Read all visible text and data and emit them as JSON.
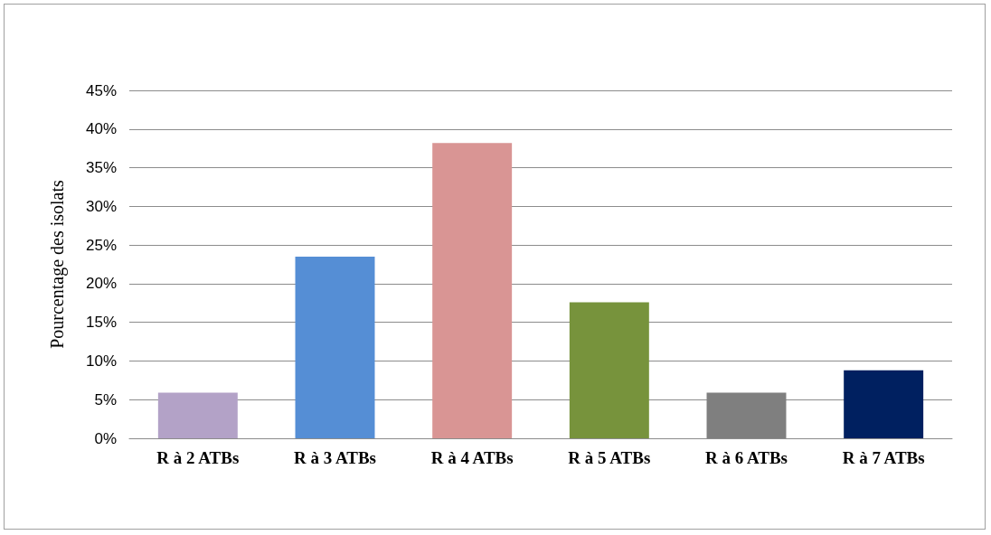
{
  "chart_data": {
    "type": "bar",
    "ylabel": "Pourcentage des isolats",
    "categories": [
      "R à 2 ATBs",
      "R à 3 ATBs",
      "R à 4 ATBs",
      "R à 5 ATBs",
      "R à 6 ATBs",
      "R à 7 ATBs"
    ],
    "values": [
      5.9,
      23.5,
      38.2,
      17.6,
      5.9,
      8.8
    ],
    "colors": [
      "#b3a2c7",
      "#558ed5",
      "#d99594",
      "#77933c",
      "#7f7f7f",
      "#002060"
    ],
    "ylim": [
      0,
      45
    ],
    "yticks": [
      {
        "value": 0,
        "label": "0%"
      },
      {
        "value": 5,
        "label": "5%"
      },
      {
        "value": 10,
        "label": "10%"
      },
      {
        "value": 15,
        "label": "15%"
      },
      {
        "value": 20,
        "label": "20%"
      },
      {
        "value": 25,
        "label": "25%"
      },
      {
        "value": 30,
        "label": "30%"
      },
      {
        "value": 35,
        "label": "35%"
      },
      {
        "value": 40,
        "label": "40%"
      },
      {
        "value": 45,
        "label": "45%"
      }
    ],
    "grid": "y"
  }
}
